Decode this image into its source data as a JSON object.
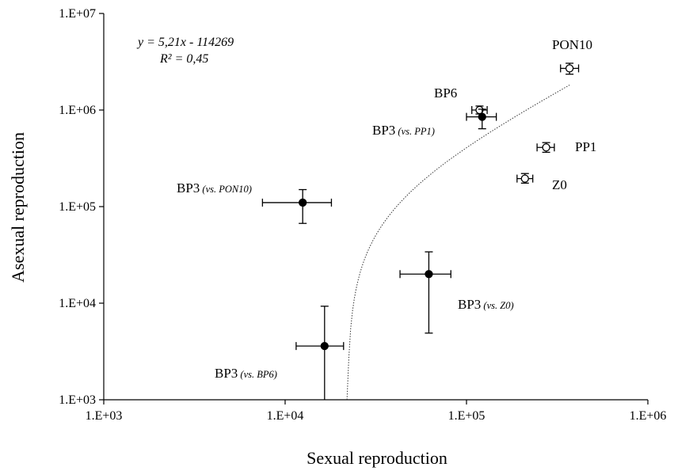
{
  "chart_data": {
    "type": "scatter",
    "xlabel": "Sexual reproduction",
    "ylabel": "Asexual reproduction",
    "xscale": "log",
    "yscale": "log",
    "xlim": [
      1000,
      1000000
    ],
    "ylim": [
      1000,
      10000000
    ],
    "xticks": [
      "1.E+03",
      "1.E+04",
      "1.E+05",
      "1.E+06"
    ],
    "yticks": [
      "1.E+03",
      "1.E+04",
      "1.E+05",
      "1.E+06",
      "1.E+07"
    ],
    "grid": false,
    "equation": "y = 5,21x - 114269",
    "r_squared": "R² = 0,45",
    "trendline": {
      "slope": 5.21,
      "intercept": -114269,
      "x_range": [
        21933,
        370000
      ]
    },
    "series": [
      {
        "marker": "open-circle",
        "points": [
          {
            "label": "PON10",
            "x": 370000,
            "y": 2700000,
            "xerr": [
              330000,
              415000
            ],
            "yerr": [
              2350000,
              3050000
            ]
          },
          {
            "label": "BP6",
            "x": 118000,
            "y": 1000000,
            "xerr": [
              107000,
              130000
            ],
            "yerr": [
              910000,
              1100000
            ]
          },
          {
            "label": "PP1",
            "x": 275000,
            "y": 410000,
            "xerr": [
              245000,
              305000
            ],
            "yerr": [
              365000,
              460000
            ]
          },
          {
            "label": "Z0",
            "x": 210000,
            "y": 195000,
            "xerr": [
              190000,
              232000
            ],
            "yerr": [
              175000,
              220000
            ]
          }
        ]
      },
      {
        "marker": "filled-circle",
        "points": [
          {
            "label": "BP3",
            "label_note": "(vs. PP1)",
            "x": 122000,
            "y": 850000,
            "xerr": [
              100000,
              146000
            ],
            "yerr": [
              640000,
              1020000
            ]
          },
          {
            "label": "BP3",
            "label_note": "(vs. PON10)",
            "x": 12500,
            "y": 110000,
            "xerr": [
              7500,
              18000
            ],
            "yerr": [
              67000,
              150000
            ]
          },
          {
            "label": "BP3",
            "label_note": "(vs. Z0)",
            "x": 62000,
            "y": 20000,
            "xerr": [
              43000,
              82000
            ],
            "yerr": [
              4900,
              34000
            ]
          },
          {
            "label": "BP3",
            "label_note": "(vs. BP6)",
            "x": 16500,
            "y": 3600,
            "xerr": [
              11500,
              21000
            ],
            "yerr": [
              1000,
              9300
            ]
          }
        ]
      }
    ]
  }
}
